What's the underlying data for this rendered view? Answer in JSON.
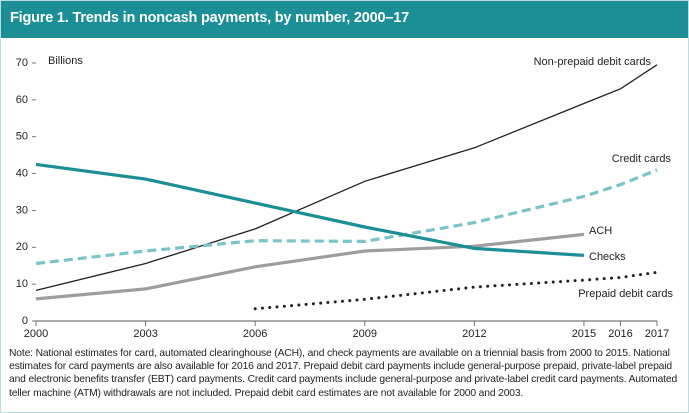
{
  "chart_data": {
    "type": "line",
    "title": "Figure 1. Trends in noncash payments, by number, 2000–17",
    "y_label": "Billions",
    "x": [
      2000,
      2003,
      2006,
      2009,
      2012,
      2015,
      2016,
      2017
    ],
    "xlim": [
      2000,
      2017
    ],
    "xticks": [
      2000,
      2003,
      2006,
      2009,
      2012,
      2015,
      2016,
      2017
    ],
    "ylim": [
      0,
      70
    ],
    "yticks": [
      0,
      10,
      20,
      30,
      40,
      50,
      60,
      70
    ],
    "series": [
      {
        "name": "Non-prepaid debit cards",
        "color": "#231f20",
        "style": "solid",
        "width": 1.3,
        "values": [
          8.3,
          15.6,
          25,
          37.9,
          47,
          59,
          63,
          69.5
        ]
      },
      {
        "name": "Credit cards",
        "color": "#7cc3c8",
        "style": "dashed",
        "width": 3.2,
        "values": [
          15.6,
          19,
          21.8,
          21.6,
          26.7,
          33.8,
          37,
          41
        ]
      },
      {
        "name": "ACH",
        "color": "#9d9d9d",
        "style": "solid",
        "width": 3.2,
        "values": [
          6,
          8.7,
          14.7,
          19,
          20.3,
          23.5,
          null,
          null
        ]
      },
      {
        "name": "Checks",
        "color": "#1b8e96",
        "style": "solid",
        "width": 3.2,
        "values": [
          42.5,
          38.5,
          32,
          25.5,
          19.7,
          17.8,
          null,
          null
        ]
      },
      {
        "name": "Prepaid debit cards",
        "color": "#231f20",
        "style": "dotted",
        "width": 3,
        "values": [
          null,
          null,
          3.3,
          5.9,
          9.2,
          11.1,
          11.8,
          13.2
        ]
      }
    ],
    "note": "Note: National estimates for card, automated clearinghouse (ACH), and check payments are available on a triennial basis from 2000 to 2015. National estimates for card payments are also available for 2016 and 2017. Prepaid debit card payments include general-purpose prepaid, private-label prepaid and electronic benefits transfer (EBT) card payments. Credit card payments include general-purpose and private-label credit card payments. Automated teller machine (ATM) withdrawals are not included. Prepaid debit card estimates are not available for 2000 and 2003."
  }
}
